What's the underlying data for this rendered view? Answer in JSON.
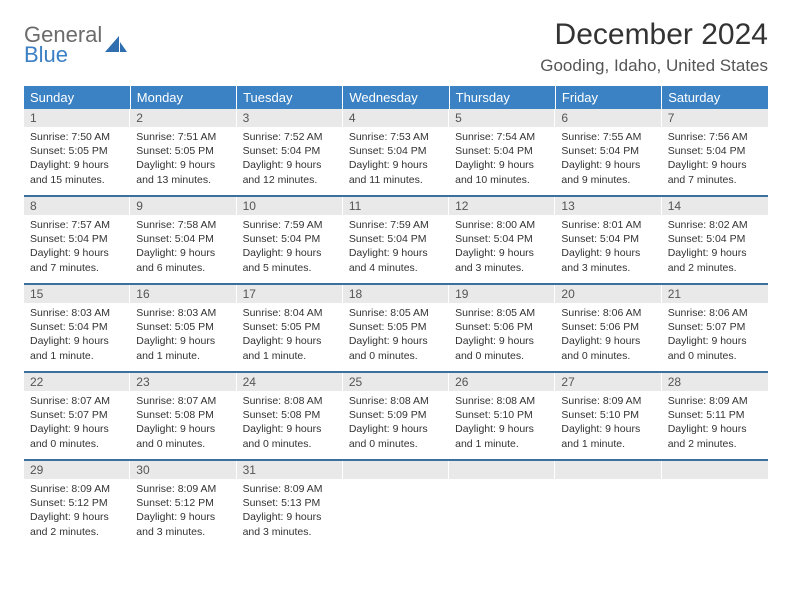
{
  "brand": {
    "word1": "General",
    "word2": "Blue",
    "icon_color": "#2f6fb0"
  },
  "title": "December 2024",
  "location": "Gooding, Idaho, United States",
  "colors": {
    "header_bg": "#3b82c4",
    "header_fg": "#ffffff",
    "row_divider": "#3b6fa0",
    "daynum_bg": "#e9e9e9",
    "text": "#333333"
  },
  "day_headers": [
    "Sunday",
    "Monday",
    "Tuesday",
    "Wednesday",
    "Thursday",
    "Friday",
    "Saturday"
  ],
  "weeks": [
    [
      {
        "n": "1",
        "sr": "Sunrise: 7:50 AM",
        "ss": "Sunset: 5:05 PM",
        "d1": "Daylight: 9 hours",
        "d2": "and 15 minutes."
      },
      {
        "n": "2",
        "sr": "Sunrise: 7:51 AM",
        "ss": "Sunset: 5:05 PM",
        "d1": "Daylight: 9 hours",
        "d2": "and 13 minutes."
      },
      {
        "n": "3",
        "sr": "Sunrise: 7:52 AM",
        "ss": "Sunset: 5:04 PM",
        "d1": "Daylight: 9 hours",
        "d2": "and 12 minutes."
      },
      {
        "n": "4",
        "sr": "Sunrise: 7:53 AM",
        "ss": "Sunset: 5:04 PM",
        "d1": "Daylight: 9 hours",
        "d2": "and 11 minutes."
      },
      {
        "n": "5",
        "sr": "Sunrise: 7:54 AM",
        "ss": "Sunset: 5:04 PM",
        "d1": "Daylight: 9 hours",
        "d2": "and 10 minutes."
      },
      {
        "n": "6",
        "sr": "Sunrise: 7:55 AM",
        "ss": "Sunset: 5:04 PM",
        "d1": "Daylight: 9 hours",
        "d2": "and 9 minutes."
      },
      {
        "n": "7",
        "sr": "Sunrise: 7:56 AM",
        "ss": "Sunset: 5:04 PM",
        "d1": "Daylight: 9 hours",
        "d2": "and 7 minutes."
      }
    ],
    [
      {
        "n": "8",
        "sr": "Sunrise: 7:57 AM",
        "ss": "Sunset: 5:04 PM",
        "d1": "Daylight: 9 hours",
        "d2": "and 7 minutes."
      },
      {
        "n": "9",
        "sr": "Sunrise: 7:58 AM",
        "ss": "Sunset: 5:04 PM",
        "d1": "Daylight: 9 hours",
        "d2": "and 6 minutes."
      },
      {
        "n": "10",
        "sr": "Sunrise: 7:59 AM",
        "ss": "Sunset: 5:04 PM",
        "d1": "Daylight: 9 hours",
        "d2": "and 5 minutes."
      },
      {
        "n": "11",
        "sr": "Sunrise: 7:59 AM",
        "ss": "Sunset: 5:04 PM",
        "d1": "Daylight: 9 hours",
        "d2": "and 4 minutes."
      },
      {
        "n": "12",
        "sr": "Sunrise: 8:00 AM",
        "ss": "Sunset: 5:04 PM",
        "d1": "Daylight: 9 hours",
        "d2": "and 3 minutes."
      },
      {
        "n": "13",
        "sr": "Sunrise: 8:01 AM",
        "ss": "Sunset: 5:04 PM",
        "d1": "Daylight: 9 hours",
        "d2": "and 3 minutes."
      },
      {
        "n": "14",
        "sr": "Sunrise: 8:02 AM",
        "ss": "Sunset: 5:04 PM",
        "d1": "Daylight: 9 hours",
        "d2": "and 2 minutes."
      }
    ],
    [
      {
        "n": "15",
        "sr": "Sunrise: 8:03 AM",
        "ss": "Sunset: 5:04 PM",
        "d1": "Daylight: 9 hours",
        "d2": "and 1 minute."
      },
      {
        "n": "16",
        "sr": "Sunrise: 8:03 AM",
        "ss": "Sunset: 5:05 PM",
        "d1": "Daylight: 9 hours",
        "d2": "and 1 minute."
      },
      {
        "n": "17",
        "sr": "Sunrise: 8:04 AM",
        "ss": "Sunset: 5:05 PM",
        "d1": "Daylight: 9 hours",
        "d2": "and 1 minute."
      },
      {
        "n": "18",
        "sr": "Sunrise: 8:05 AM",
        "ss": "Sunset: 5:05 PM",
        "d1": "Daylight: 9 hours",
        "d2": "and 0 minutes."
      },
      {
        "n": "19",
        "sr": "Sunrise: 8:05 AM",
        "ss": "Sunset: 5:06 PM",
        "d1": "Daylight: 9 hours",
        "d2": "and 0 minutes."
      },
      {
        "n": "20",
        "sr": "Sunrise: 8:06 AM",
        "ss": "Sunset: 5:06 PM",
        "d1": "Daylight: 9 hours",
        "d2": "and 0 minutes."
      },
      {
        "n": "21",
        "sr": "Sunrise: 8:06 AM",
        "ss": "Sunset: 5:07 PM",
        "d1": "Daylight: 9 hours",
        "d2": "and 0 minutes."
      }
    ],
    [
      {
        "n": "22",
        "sr": "Sunrise: 8:07 AM",
        "ss": "Sunset: 5:07 PM",
        "d1": "Daylight: 9 hours",
        "d2": "and 0 minutes."
      },
      {
        "n": "23",
        "sr": "Sunrise: 8:07 AM",
        "ss": "Sunset: 5:08 PM",
        "d1": "Daylight: 9 hours",
        "d2": "and 0 minutes."
      },
      {
        "n": "24",
        "sr": "Sunrise: 8:08 AM",
        "ss": "Sunset: 5:08 PM",
        "d1": "Daylight: 9 hours",
        "d2": "and 0 minutes."
      },
      {
        "n": "25",
        "sr": "Sunrise: 8:08 AM",
        "ss": "Sunset: 5:09 PM",
        "d1": "Daylight: 9 hours",
        "d2": "and 0 minutes."
      },
      {
        "n": "26",
        "sr": "Sunrise: 8:08 AM",
        "ss": "Sunset: 5:10 PM",
        "d1": "Daylight: 9 hours",
        "d2": "and 1 minute."
      },
      {
        "n": "27",
        "sr": "Sunrise: 8:09 AM",
        "ss": "Sunset: 5:10 PM",
        "d1": "Daylight: 9 hours",
        "d2": "and 1 minute."
      },
      {
        "n": "28",
        "sr": "Sunrise: 8:09 AM",
        "ss": "Sunset: 5:11 PM",
        "d1": "Daylight: 9 hours",
        "d2": "and 2 minutes."
      }
    ],
    [
      {
        "n": "29",
        "sr": "Sunrise: 8:09 AM",
        "ss": "Sunset: 5:12 PM",
        "d1": "Daylight: 9 hours",
        "d2": "and 2 minutes."
      },
      {
        "n": "30",
        "sr": "Sunrise: 8:09 AM",
        "ss": "Sunset: 5:12 PM",
        "d1": "Daylight: 9 hours",
        "d2": "and 3 minutes."
      },
      {
        "n": "31",
        "sr": "Sunrise: 8:09 AM",
        "ss": "Sunset: 5:13 PM",
        "d1": "Daylight: 9 hours",
        "d2": "and 3 minutes."
      },
      {
        "n": "",
        "sr": "",
        "ss": "",
        "d1": "",
        "d2": ""
      },
      {
        "n": "",
        "sr": "",
        "ss": "",
        "d1": "",
        "d2": ""
      },
      {
        "n": "",
        "sr": "",
        "ss": "",
        "d1": "",
        "d2": ""
      },
      {
        "n": "",
        "sr": "",
        "ss": "",
        "d1": "",
        "d2": ""
      }
    ]
  ]
}
